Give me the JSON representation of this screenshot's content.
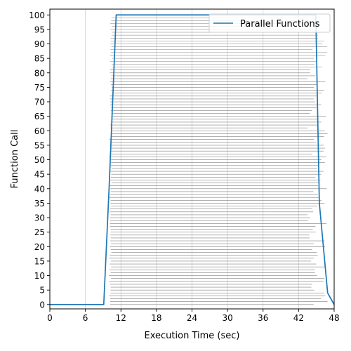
{
  "chart_data": {
    "type": "line",
    "title": "",
    "xlabel": "Execution Time (sec)",
    "ylabel": "Function Call",
    "xlim": [
      0,
      48
    ],
    "ylim": [
      -1.5,
      102
    ],
    "xticks": [
      0,
      6,
      12,
      18,
      24,
      30,
      36,
      42,
      48
    ],
    "yticks": [
      0,
      5,
      10,
      15,
      20,
      25,
      30,
      35,
      40,
      45,
      50,
      55,
      60,
      65,
      70,
      75,
      80,
      85,
      90,
      95,
      100
    ],
    "grid": "vertical",
    "legend_position": "upper-right",
    "series": [
      {
        "name": "Parallel Functions",
        "color": "#1f77b4",
        "x": [
          0,
          9.1,
          10,
          11.2,
          44.9,
          45.5,
          46.9,
          48
        ],
        "y": [
          0,
          0,
          40,
          100,
          100,
          35,
          4,
          0
        ]
      }
    ],
    "function_calls": {
      "count": 100,
      "color": "#808080",
      "start_range": [
        9.9,
        10.6
      ],
      "end_range": [
        43.5,
        46.9
      ],
      "note": "one horizontal segment per function call, from its start time to its end time"
    }
  }
}
